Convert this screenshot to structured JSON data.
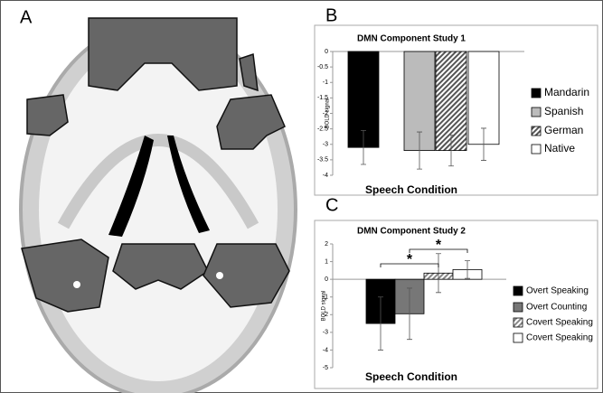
{
  "panel_labels": [
    "A",
    "B",
    "C"
  ],
  "chart_data": [
    {
      "type": "bar",
      "title": "DMN Component Study 1",
      "y_label": "BOLD signal",
      "x_label": "Speech Condition",
      "ylim": [
        -4,
        0
      ],
      "yticks": [
        0,
        -0.5,
        -1,
        -1.5,
        -2,
        -2.5,
        -3,
        -3.5,
        -4
      ],
      "series": [
        {
          "name": "Mandarin",
          "color": "#000000",
          "hatch": false,
          "values": [
            -3.1
          ],
          "errors": [
            0.55
          ]
        },
        {
          "name": "Spanish",
          "color": "#bbbbbb",
          "hatch": false,
          "values": [
            -3.2
          ],
          "errors": [
            0.6
          ]
        },
        {
          "name": "German",
          "color": "#555555",
          "hatch": true,
          "values": [
            -3.2
          ],
          "errors": [
            0.5
          ]
        },
        {
          "name": "Native",
          "color": "#ffffff",
          "hatch": false,
          "values": [
            -3.0
          ],
          "errors": [
            0.52
          ]
        }
      ]
    },
    {
      "type": "bar",
      "title": "DMN Component Study 2",
      "y_label": "BOLD signal",
      "x_label": "Speech Condition",
      "ylim": [
        -5,
        2
      ],
      "yticks": [
        2,
        1,
        0,
        -1,
        -2,
        -3,
        -4,
        -5
      ],
      "series": [
        {
          "name": "Overt Speaking",
          "color": "#000000",
          "hatch": false,
          "values": [
            -2.5
          ],
          "errors": [
            1.5
          ]
        },
        {
          "name": "Overt Counting",
          "color": "#777777",
          "hatch": false,
          "values": [
            -1.95
          ],
          "errors": [
            1.45
          ]
        },
        {
          "name": "Covert Speaking",
          "color": "#888888",
          "hatch": true,
          "values": [
            0.35
          ],
          "errors": [
            1.1
          ]
        },
        {
          "name": "Covert Speaking",
          "color": "#ffffff",
          "hatch": false,
          "values": [
            0.55
          ],
          "errors": [
            0.5
          ]
        }
      ],
      "annotations": [
        {
          "text": "*"
        },
        {
          "text": "*"
        }
      ]
    }
  ]
}
